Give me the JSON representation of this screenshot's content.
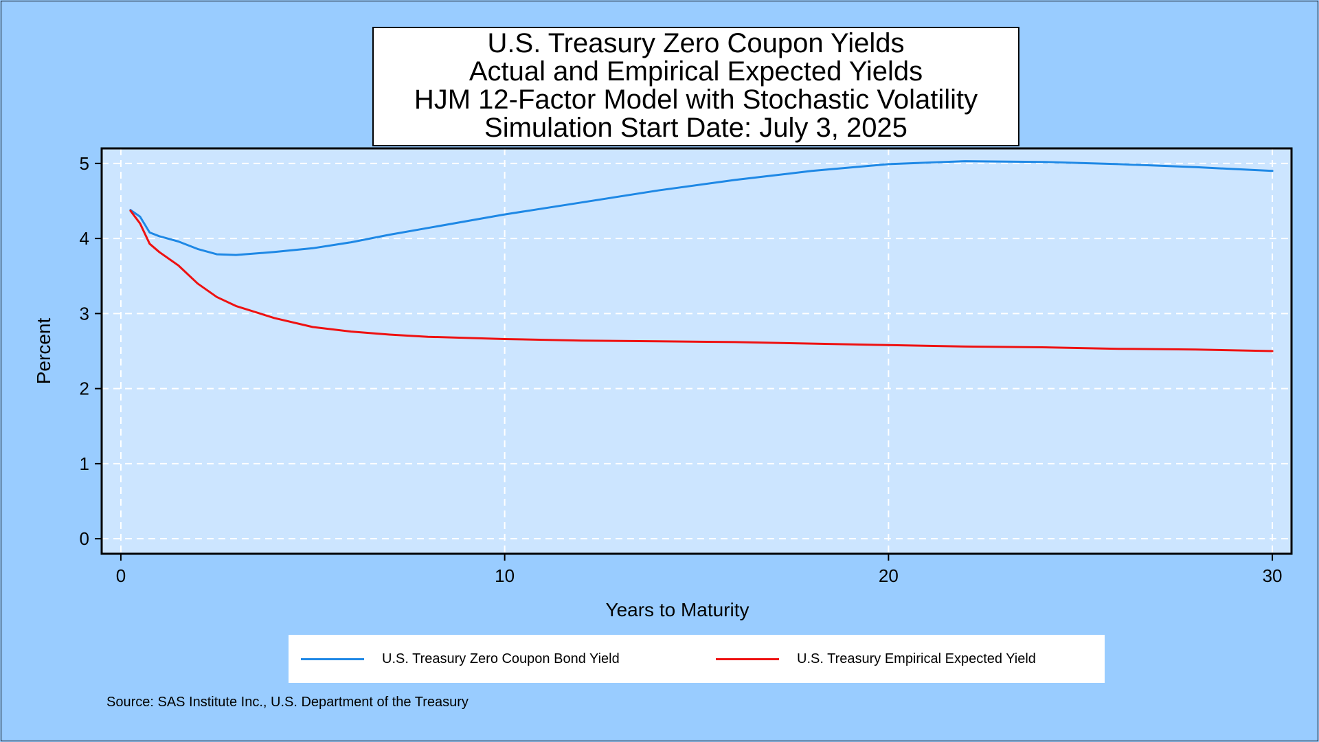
{
  "title_lines": [
    "U.S. Treasury Zero Coupon Yields",
    "Actual and Empirical Expected Yields",
    "HJM 12-Factor Model with Stochastic Volatility",
    "Simulation Start Date: July 3, 2025"
  ],
  "source": "Source: SAS Institute Inc., U.S. Department of the Treasury",
  "colors": {
    "page_background": "#99ccff",
    "plot_background": "#cce5ff",
    "grid": "#ffffff",
    "zero_coupon": "#1e88e5",
    "empirical_expected": "#ee1111"
  },
  "chart_data": {
    "type": "line",
    "xlabel": "Years to Maturity",
    "ylabel": "Percent",
    "xlim": [
      -0.5,
      30.5
    ],
    "ylim": [
      -0.2,
      5.2
    ],
    "xticks": [
      0,
      10,
      20,
      30
    ],
    "yticks": [
      0,
      1,
      2,
      3,
      4,
      5
    ],
    "grid": true,
    "legend_position": "bottom",
    "series": [
      {
        "name": "U.S. Treasury Zero Coupon Bond Yield",
        "color": "#1e88e5",
        "x": [
          0.25,
          0.5,
          0.75,
          1,
          1.5,
          2,
          2.5,
          3,
          4,
          5,
          6,
          7,
          8,
          10,
          12,
          14,
          16,
          18,
          20,
          22,
          24,
          26,
          28,
          30
        ],
        "y": [
          4.38,
          4.29,
          4.08,
          4.03,
          3.96,
          3.86,
          3.79,
          3.78,
          3.82,
          3.87,
          3.95,
          4.05,
          4.14,
          4.32,
          4.48,
          4.64,
          4.78,
          4.9,
          4.99,
          5.03,
          5.02,
          4.99,
          4.95,
          4.9
        ]
      },
      {
        "name": "U.S. Treasury Empirical Expected Yield",
        "color": "#ee1111",
        "x": [
          0.25,
          0.5,
          0.75,
          1,
          1.5,
          2,
          2.5,
          3,
          4,
          5,
          6,
          7,
          8,
          10,
          12,
          14,
          16,
          18,
          20,
          22,
          24,
          26,
          28,
          30
        ],
        "y": [
          4.37,
          4.2,
          3.93,
          3.82,
          3.64,
          3.4,
          3.22,
          3.1,
          2.94,
          2.82,
          2.76,
          2.72,
          2.69,
          2.66,
          2.64,
          2.63,
          2.62,
          2.6,
          2.58,
          2.56,
          2.55,
          2.53,
          2.52,
          2.5
        ]
      }
    ]
  }
}
